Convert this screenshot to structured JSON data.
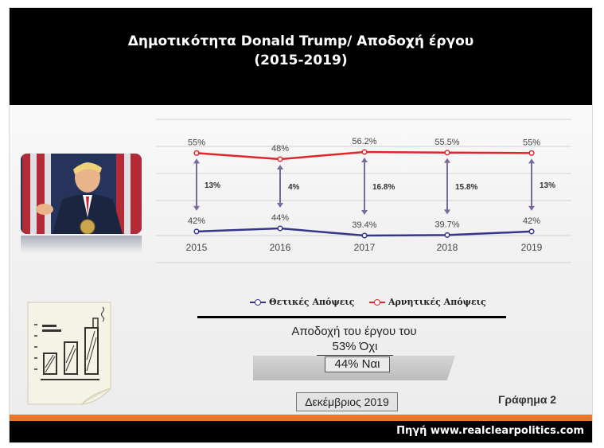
{
  "header": {
    "title_line1": "Δημοτικότητα Donald Trump/ Αποδοχή έργου",
    "title_line2": "(2015-2019)"
  },
  "colors": {
    "positive": "#35358e",
    "negative": "#e0262a",
    "gap_arrow": "#7a6a9a",
    "accent_orange": "#e8772e"
  },
  "chart_data": {
    "type": "line",
    "x": [
      "2015",
      "2016",
      "2017",
      "2018",
      "2019"
    ],
    "series": [
      {
        "name": "Αρνητικές Απόψεις",
        "values": [
          55,
          48,
          56.2,
          55.5,
          55
        ],
        "labels": [
          "55%",
          "48%",
          "56.2%",
          "55.5%",
          "55%"
        ]
      },
      {
        "name": "Θετικές Απόψεις",
        "values": [
          42,
          44,
          39.4,
          39.7,
          42
        ],
        "labels": [
          "42%",
          "44%",
          "39.4%",
          "39.7%",
          "42%"
        ]
      }
    ],
    "gaps": [
      "13%",
      "4%",
      "16.8%",
      "15.8%",
      "13%"
    ],
    "grid": true,
    "legend_position": "bottom"
  },
  "legend": {
    "positive_label": "Θετικές Απόψεις",
    "negative_label": "Αρνητικές Απόψεις"
  },
  "approval": {
    "title": "Αποδοχή του έργου του",
    "no": "53% Όχι",
    "yes": "44% Ναι"
  },
  "date_label": "Δεκέμβριος 2019",
  "figure_label": "Γράφημα 2",
  "footer": {
    "source": "Πηγή www.realclearpolitics.com"
  }
}
